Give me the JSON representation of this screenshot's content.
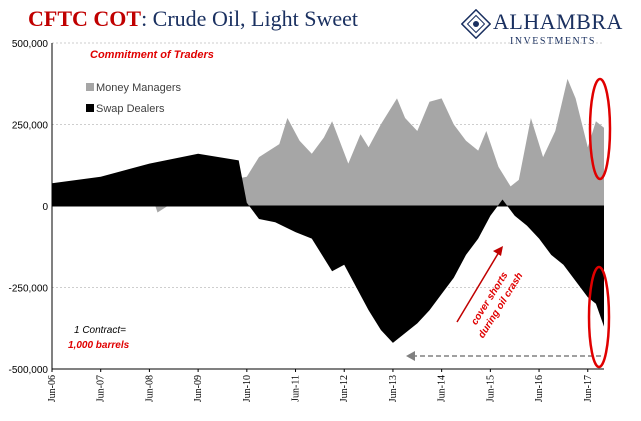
{
  "header": {
    "title_part1": "CFTC COT",
    "title_part2": ": Crude Oil, Light Sweet",
    "brand_name": "ALHAMBRA",
    "brand_sub": "INVESTMENTS"
  },
  "chart_data": {
    "type": "area",
    "subtitle": "Commitment of Traders",
    "ylim": [
      -500000,
      500000
    ],
    "yticks": [
      500000,
      250000,
      0,
      -250000,
      -500000
    ],
    "ytick_labels": [
      "500,000",
      "250,000",
      "0",
      "-250,000",
      "-500,000"
    ],
    "x_start": "2006-06",
    "x_end": "2017-10",
    "xtick_labels": [
      "Jun-06",
      "Jun-07",
      "Jun-08",
      "Jun-09",
      "Jun-10",
      "Jun-11",
      "Jun-12",
      "Jun-13",
      "Jun-14",
      "Jun-15",
      "Jun-16",
      "Jun-17"
    ],
    "xticks": [
      "2006-06",
      "2007-06",
      "2008-06",
      "2009-06",
      "2010-06",
      "2011-06",
      "2012-06",
      "2013-06",
      "2014-06",
      "2015-06",
      "2016-06",
      "2017-06"
    ],
    "grid": "horizontal dashed",
    "legend": {
      "position": "top-left"
    },
    "series": [
      {
        "name": "Money Managers",
        "color": "#a6a6a6",
        "points": [
          [
            "2006-06",
            40000
          ],
          [
            "2007-06",
            50000
          ],
          [
            "2008-06",
            55000
          ],
          [
            "2008-08",
            -20000
          ],
          [
            "2009-06",
            60000
          ],
          [
            "2010-06",
            90000
          ],
          [
            "2010-09",
            150000
          ],
          [
            "2011-02",
            190000
          ],
          [
            "2011-04",
            270000
          ],
          [
            "2011-07",
            200000
          ],
          [
            "2011-10",
            160000
          ],
          [
            "2012-01",
            210000
          ],
          [
            "2012-03",
            260000
          ],
          [
            "2012-07",
            130000
          ],
          [
            "2012-10",
            220000
          ],
          [
            "2012-12",
            180000
          ],
          [
            "2013-03",
            250000
          ],
          [
            "2013-07",
            330000
          ],
          [
            "2013-09",
            270000
          ],
          [
            "2013-12",
            230000
          ],
          [
            "2014-03",
            320000
          ],
          [
            "2014-06",
            330000
          ],
          [
            "2014-09",
            250000
          ],
          [
            "2014-12",
            200000
          ],
          [
            "2015-03",
            170000
          ],
          [
            "2015-05",
            230000
          ],
          [
            "2015-08",
            120000
          ],
          [
            "2015-11",
            60000
          ],
          [
            "2016-01",
            80000
          ],
          [
            "2016-04",
            270000
          ],
          [
            "2016-07",
            150000
          ],
          [
            "2016-10",
            230000
          ],
          [
            "2017-01",
            390000
          ],
          [
            "2017-03",
            330000
          ],
          [
            "2017-06",
            180000
          ],
          [
            "2017-08",
            260000
          ],
          [
            "2017-10",
            240000
          ]
        ]
      },
      {
        "name": "Swap Dealers",
        "color": "#000000",
        "points": [
          [
            "2006-06",
            70000
          ],
          [
            "2007-06",
            90000
          ],
          [
            "2008-06",
            130000
          ],
          [
            "2009-06",
            160000
          ],
          [
            "2010-04",
            140000
          ],
          [
            "2010-06",
            10000
          ],
          [
            "2010-09",
            -40000
          ],
          [
            "2011-01",
            -50000
          ],
          [
            "2011-06",
            -80000
          ],
          [
            "2011-10",
            -100000
          ],
          [
            "2012-03",
            -200000
          ],
          [
            "2012-06",
            -180000
          ],
          [
            "2012-09",
            -250000
          ],
          [
            "2012-12",
            -320000
          ],
          [
            "2013-03",
            -380000
          ],
          [
            "2013-06",
            -420000
          ],
          [
            "2013-09",
            -390000
          ],
          [
            "2013-12",
            -360000
          ],
          [
            "2014-03",
            -320000
          ],
          [
            "2014-06",
            -270000
          ],
          [
            "2014-09",
            -220000
          ],
          [
            "2014-12",
            -150000
          ],
          [
            "2015-03",
            -100000
          ],
          [
            "2015-06",
            -30000
          ],
          [
            "2015-09",
            20000
          ],
          [
            "2015-12",
            -30000
          ],
          [
            "2016-03",
            -60000
          ],
          [
            "2016-06",
            -100000
          ],
          [
            "2016-09",
            -150000
          ],
          [
            "2016-12",
            -180000
          ],
          [
            "2017-03",
            -230000
          ],
          [
            "2017-06",
            -280000
          ],
          [
            "2017-08",
            -300000
          ],
          [
            "2017-10",
            -370000
          ]
        ]
      }
    ],
    "annotations": {
      "contract_line1": "1 Contract=",
      "contract_line2": "1,000 barrels",
      "cover_line1": "cover shorts",
      "cover_line2": "during oil crash"
    },
    "colors": {
      "accent": "#e00000",
      "grid": "#bfbfbf",
      "brand": "#1a3060"
    }
  }
}
